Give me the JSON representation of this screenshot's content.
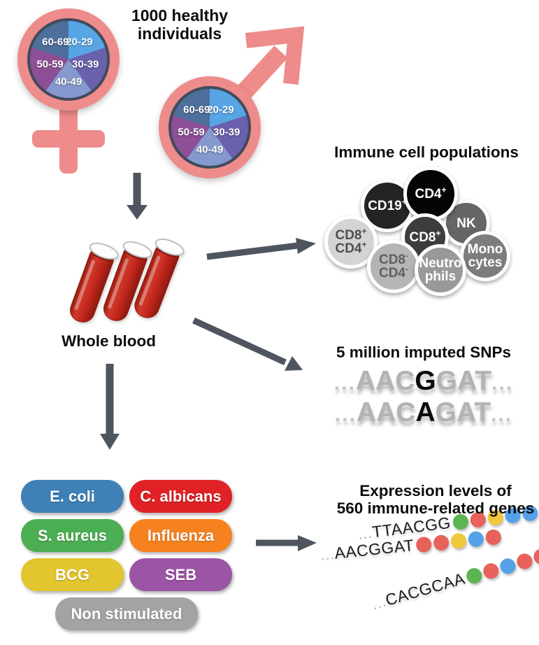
{
  "title": {
    "lines": [
      "1000 healthy",
      "individuals"
    ]
  },
  "demographics": {
    "symbol_color": "#ee8c8c",
    "ring_color": "#414b5c",
    "age_groups": [
      {
        "label": "20-29",
        "color": "#57a5e5"
      },
      {
        "label": "30-39",
        "color": "#6a61ad"
      },
      {
        "label": "40-49",
        "color": "#8599cf"
      },
      {
        "label": "50-59",
        "color": "#8d4f96"
      },
      {
        "label": "60-69",
        "color": "#4e6e9c"
      }
    ]
  },
  "whole_blood": {
    "label": "Whole blood",
    "tube_color": "#c0251c"
  },
  "immune": {
    "title": "Immune cell populations",
    "cells": [
      {
        "id": "nk",
        "lines": [
          {
            "text": "NK",
            "sup": ""
          }
        ],
        "bg": "#666666",
        "fg": "#ffffff"
      },
      {
        "id": "cd19",
        "lines": [
          {
            "text": "CD19",
            "sup": "+"
          }
        ],
        "bg": "#242424",
        "fg": "#ffffff"
      },
      {
        "id": "mono",
        "lines": [
          {
            "text": "Mono",
            "sup": ""
          },
          {
            "text": "cytes",
            "sup": ""
          }
        ],
        "bg": "#7d7d7d",
        "fg": "#ffffff"
      },
      {
        "id": "cd4",
        "lines": [
          {
            "text": "CD4",
            "sup": "+"
          }
        ],
        "bg": "#050505",
        "fg": "#ffffff"
      },
      {
        "id": "cd8cd4p",
        "lines": [
          {
            "text": "CD8",
            "sup": "+"
          },
          {
            "text": "CD4",
            "sup": "+"
          }
        ],
        "bg": "#d4d4d4",
        "fg": "#4f4f4f"
      },
      {
        "id": "cd8",
        "lines": [
          {
            "text": "CD8",
            "sup": "+"
          }
        ],
        "bg": "#3d3d3d",
        "fg": "#ffffff"
      },
      {
        "id": "cd8cd4n",
        "lines": [
          {
            "text": "CD8",
            "sup": "-"
          },
          {
            "text": "CD4",
            "sup": "-"
          }
        ],
        "bg": "#b5b5b5",
        "fg": "#5f5f5f"
      },
      {
        "id": "neutro",
        "lines": [
          {
            "text": "Neutro",
            "sup": ""
          },
          {
            "text": "phils",
            "sup": ""
          }
        ],
        "bg": "#999999",
        "fg": "#ffffff"
      }
    ]
  },
  "snps": {
    "title": "5 million imputed SNPs",
    "lines": [
      {
        "prefix": "...",
        "pre": "AAC",
        "snp": "G",
        "post": "GAT",
        "suffix": "..."
      },
      {
        "prefix": "...",
        "pre": "AAC",
        "snp": "A",
        "post": "GAT",
        "suffix": "..."
      }
    ]
  },
  "stimuli": {
    "pills": [
      {
        "id": "ecoli",
        "label": "E. coli",
        "color": "#3f80b6"
      },
      {
        "id": "calbicans",
        "label": "C. albicans",
        "color": "#e02227"
      },
      {
        "id": "saureus",
        "label": "S. aureus",
        "color": "#4cae52"
      },
      {
        "id": "influenza",
        "label": "Influenza",
        "color": "#f6821f"
      },
      {
        "id": "bcg",
        "label": "BCG",
        "color": "#e2c52f"
      },
      {
        "id": "seb",
        "label": "SEB",
        "color": "#9c55a5"
      },
      {
        "id": "nonstim",
        "label": "Non stimulated",
        "color": "#a5a2a2",
        "wide": true
      }
    ]
  },
  "expression": {
    "title_lines": [
      "Expression levels of",
      "560 immune-related genes"
    ],
    "dot_colors": {
      "green": "#5cb551",
      "red": "#e8615b",
      "yellow": "#f0c83c",
      "blue": "#55a1e8"
    },
    "rows": [
      {
        "prefix": "...",
        "seq": "TTAACGG",
        "dots": [
          "green",
          "red",
          "yellow",
          "blue",
          "blue"
        ]
      },
      {
        "prefix": "...",
        "seq": "AACGGAT",
        "dots": [
          "red",
          "red",
          "yellow",
          "blue",
          "red"
        ]
      },
      {
        "prefix": "...",
        "seq": "CACGCAA",
        "dots": [
          "green",
          "red",
          "blue",
          "red",
          "red"
        ]
      }
    ]
  },
  "colors": {
    "arrow": "#4e555e"
  }
}
